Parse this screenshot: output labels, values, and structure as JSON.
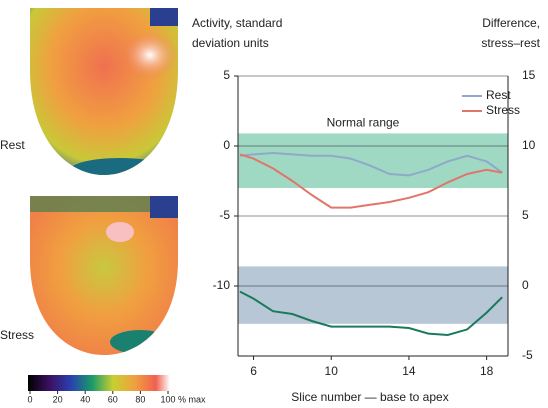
{
  "chart_data": {
    "type": "line",
    "y_label": [
      "Activity, standard",
      "deviation units"
    ],
    "y2_label": [
      "Difference,",
      "stress–rest"
    ],
    "x_label": "Slice number — base to apex",
    "panel_labels": [
      "Rest",
      "Stress"
    ],
    "x": [
      5.3,
      6,
      7,
      8,
      9,
      10,
      11,
      12,
      13,
      14,
      15,
      16,
      17,
      18,
      18.8
    ],
    "xlim": [
      5.2,
      19.1
    ],
    "xticks": [
      6,
      10,
      14,
      18
    ],
    "ylim": [
      -15,
      5
    ],
    "yticks": [
      5,
      0,
      -5,
      -10
    ],
    "y2lim": [
      -5,
      15
    ],
    "y2ticks": [
      15,
      10,
      5,
      0,
      -5
    ],
    "grid": true,
    "legend": "top-right",
    "bands": [
      {
        "label": "Normal range",
        "range": [
          -3.0,
          0.9
        ],
        "color": "#9fd9c4"
      },
      {
        "range": [
          -2.7,
          1.4
        ],
        "color": "#b7c7d6",
        "axis": "y2"
      }
    ],
    "series": [
      {
        "name": "Rest",
        "color": "#8fa9c9",
        "values": [
          -0.7,
          -0.6,
          -0.5,
          -0.6,
          -0.7,
          -0.7,
          -0.9,
          -1.4,
          -2.0,
          -2.1,
          -1.7,
          -1.1,
          -0.7,
          -1.1,
          -1.9
        ]
      },
      {
        "name": "Stress",
        "color": "#e0766a",
        "values": [
          -0.6,
          -0.9,
          -1.6,
          -2.5,
          -3.5,
          -4.4,
          -4.4,
          -4.2,
          -4.0,
          -3.7,
          -3.3,
          -2.6,
          -2.0,
          -1.7,
          -1.9
        ]
      },
      {
        "color": "#1a7a5c",
        "axis": "y2",
        "values": [
          -0.4,
          -0.9,
          -1.8,
          -2.0,
          -2.5,
          -2.9,
          -2.9,
          -2.9,
          -2.9,
          -3.0,
          -3.4,
          -3.5,
          -3.1,
          -1.9,
          -0.8
        ]
      }
    ],
    "colorbar": {
      "lim": [
        0,
        100
      ],
      "ticks": [
        0,
        20,
        40,
        60,
        80,
        100
      ],
      "unit": "% max"
    }
  }
}
